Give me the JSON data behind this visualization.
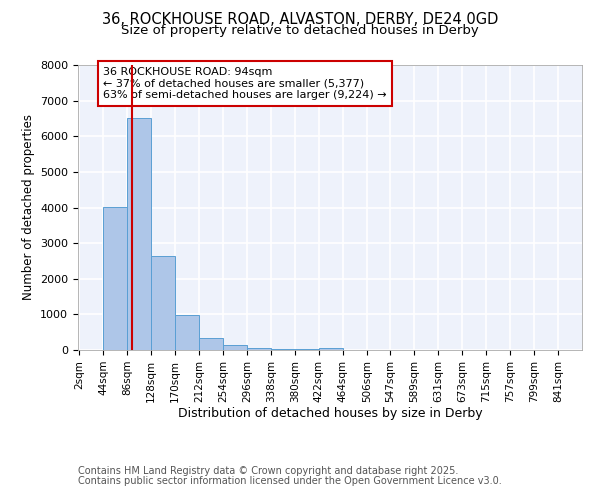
{
  "title_line1": "36, ROCKHOUSE ROAD, ALVASTON, DERBY, DE24 0GD",
  "title_line2": "Size of property relative to detached houses in Derby",
  "xlabel": "Distribution of detached houses by size in Derby",
  "ylabel": "Number of detached properties",
  "bin_labels": [
    "2sqm",
    "44sqm",
    "86sqm",
    "128sqm",
    "170sqm",
    "212sqm",
    "254sqm",
    "296sqm",
    "338sqm",
    "380sqm",
    "422sqm",
    "464sqm",
    "506sqm",
    "547sqm",
    "589sqm",
    "631sqm",
    "673sqm",
    "715sqm",
    "757sqm",
    "799sqm",
    "841sqm"
  ],
  "bin_edges": [
    2,
    44,
    86,
    128,
    170,
    212,
    254,
    296,
    338,
    380,
    422,
    464,
    506,
    547,
    589,
    631,
    673,
    715,
    757,
    799,
    841
  ],
  "bar_heights": [
    5,
    4020,
    6520,
    2650,
    990,
    350,
    130,
    70,
    30,
    20,
    55,
    0,
    0,
    0,
    0,
    0,
    0,
    0,
    0,
    0,
    0
  ],
  "bar_color": "#aec6e8",
  "bar_edgecolor": "#5a9fd4",
  "background_color": "#eef2fb",
  "grid_color": "#ffffff",
  "property_line_x": 94,
  "property_line_color": "#cc0000",
  "ylim": [
    0,
    8000
  ],
  "annotation_text": "36 ROCKHOUSE ROAD: 94sqm\n← 37% of detached houses are smaller (5,377)\n63% of semi-detached houses are larger (9,224) →",
  "annotation_box_edgecolor": "#cc0000",
  "annotation_box_facecolor": "#ffffff",
  "footer_line1": "Contains HM Land Registry data © Crown copyright and database right 2025.",
  "footer_line2": "Contains public sector information licensed under the Open Government Licence v3.0.",
  "title_fontsize": 10.5,
  "subtitle_fontsize": 9.5,
  "annotation_fontsize": 8,
  "footer_fontsize": 7
}
